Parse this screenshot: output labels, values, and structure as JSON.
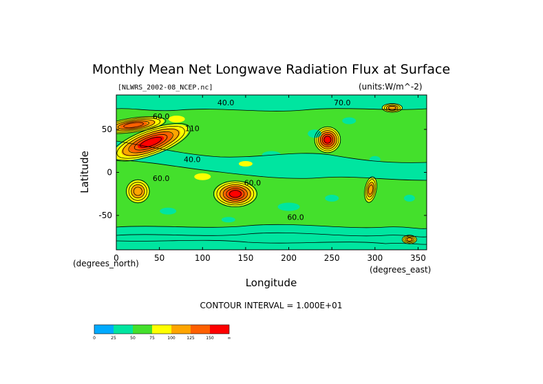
{
  "chart_data": {
    "type": "heatmap",
    "title": "Monthly Mean Net Longwave Radiation Flux at Surface",
    "file_label": "[NLWRS_2002-08_NCEP.nc]",
    "units_label": "(units:W/m^-2)",
    "ylabel": "Latitude",
    "xlabel": "Longitude",
    "x_unit_label": "(degrees_east)",
    "y_unit_label": "(degrees_north)",
    "contour_interval_label": "CONTOUR INTERVAL = 1.000E+01",
    "xlim": [
      0,
      360
    ],
    "ylim": [
      -90,
      90
    ],
    "x_ticks": [
      0,
      50,
      100,
      150,
      200,
      250,
      300,
      350
    ],
    "y_ticks": [
      50,
      0,
      -50
    ],
    "colorbar": {
      "bins": [
        {
          "color": "#00aaff",
          "from": "0",
          "to": "25"
        },
        {
          "color": "#00e5a0",
          "from": "25",
          "to": "50"
        },
        {
          "color": "#44e02c",
          "from": "50",
          "to": "75"
        },
        {
          "color": "#ffff00",
          "from": "75",
          "to": "100"
        },
        {
          "color": "#ffa500",
          "from": "100",
          "to": "125"
        },
        {
          "color": "#ff6000",
          "from": "125",
          "to": "150"
        },
        {
          "color": "#ff0000",
          "from": "150",
          "to": "∞"
        }
      ],
      "tick_labels": [
        "0",
        "25",
        "50",
        "75",
        "100",
        "125",
        "150",
        "∞"
      ]
    },
    "contour_labels": [
      {
        "text": "40.0",
        "lon": 127,
        "lat": 78
      },
      {
        "text": "70.0",
        "lon": 262,
        "lat": 78
      },
      {
        "text": "60.0",
        "lon": 52,
        "lat": 62
      },
      {
        "text": "110",
        "lon": 88,
        "lat": 48
      },
      {
        "text": "40.0",
        "lon": 88,
        "lat": 12
      },
      {
        "text": "60.0",
        "lon": 52,
        "lat": -10
      },
      {
        "text": "60.0",
        "lon": 158,
        "lat": -15
      },
      {
        "text": "60.0",
        "lon": 208,
        "lat": -55
      }
    ],
    "regions": [
      {
        "name": "background",
        "value": 55
      },
      {
        "name": "equatorial-band",
        "value": 35
      },
      {
        "name": "himalaya-hot-spot",
        "value": 140,
        "lon": 40,
        "lat": 35
      },
      {
        "name": "sahara-hot-spot",
        "value": 110,
        "lon": 20,
        "lat": 55
      },
      {
        "name": "australia-hot-spot",
        "value": 130,
        "lon": 138,
        "lat": -25
      },
      {
        "name": "north-america-hot-spot",
        "value": 140,
        "lon": 245,
        "lat": 38
      },
      {
        "name": "south-america-hot-spot",
        "value": 100,
        "lon": 295,
        "lat": -20
      },
      {
        "name": "south-africa-hot-spot",
        "value": 95,
        "lon": 25,
        "lat": -22
      }
    ]
  }
}
